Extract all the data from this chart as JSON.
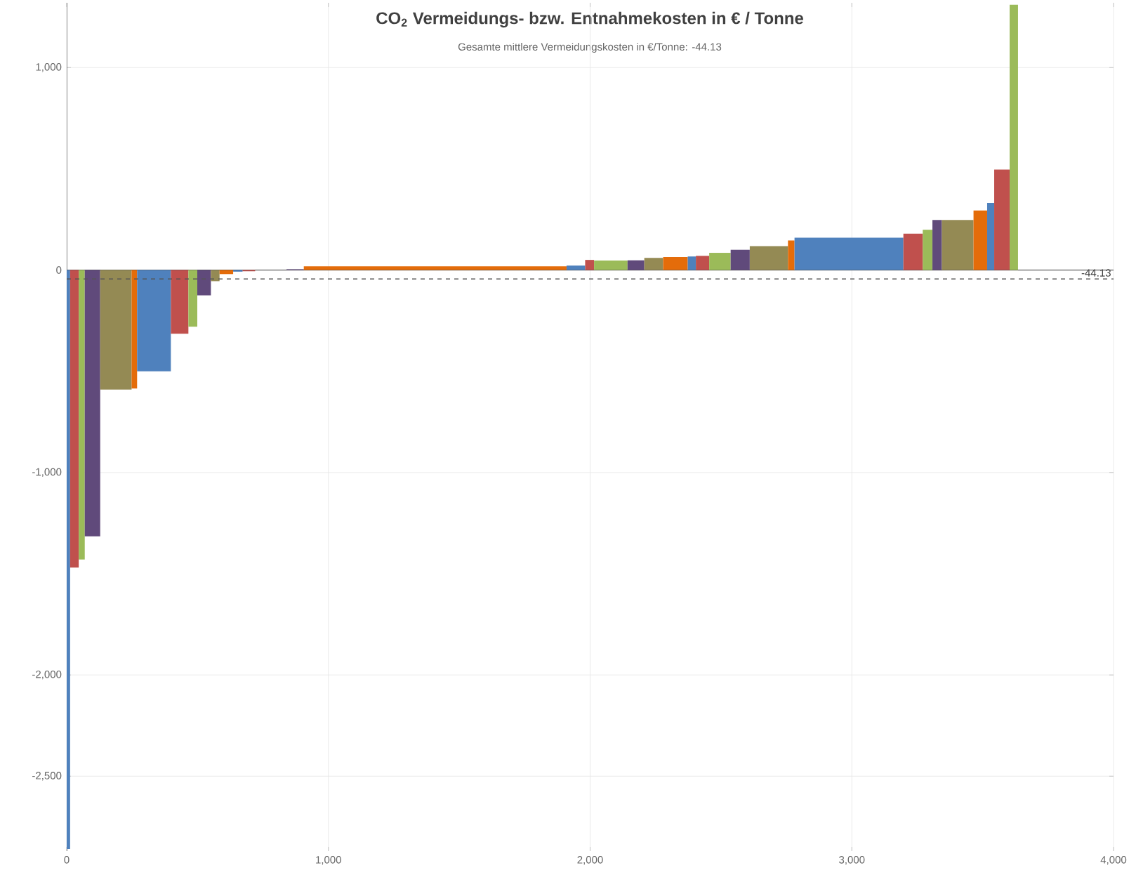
{
  "chart_data": {
    "type": "histogram",
    "title": "CO$_{2}$ Vermeidungs- bzw. Entnahmekosten in € / Tonne",
    "subtitle": "Gesamte mittlere Vermeidungskosten in €/Tonne: -44.13",
    "bins": [
      0,
      13,
      46,
      69,
      128,
      248,
      269,
      398,
      465,
      499,
      551,
      584,
      636,
      672,
      720,
      840,
      906,
      1910,
      1981,
      2015,
      2143,
      2207,
      2279,
      2373,
      2404,
      2455,
      2537,
      2610,
      2756,
      2781,
      3197,
      3271,
      3308,
      3344,
      3465,
      3517,
      3544,
      3603,
      3635
    ],
    "values": [
      -2860,
      -1470,
      -1430,
      -1315,
      -590,
      -585,
      -500,
      -315,
      -280,
      -125,
      -55,
      -20,
      -8,
      -6,
      null,
      4,
      18,
      22,
      50,
      47,
      48,
      60,
      64,
      67,
      70,
      85,
      100,
      118,
      146,
      160,
      180,
      199,
      247,
      247,
      294,
      331,
      496,
      1310
    ],
    "colors": [
      "#4f81bd",
      "#c0504d",
      "#9bbb59",
      "#604a7b",
      "#948a54",
      "#e46c0a",
      "#4f81bd",
      "#c0504d",
      "#9bbb59",
      "#604a7b",
      "#948a54",
      "#e46c0a",
      "#4f81bd",
      "#c0504d",
      null,
      "#604a7b",
      "#e46c0a",
      "#4f81bd",
      "#c0504d",
      "#9bbb59",
      "#604a7b",
      "#948a54",
      "#e46c0a",
      "#4f81bd",
      "#c0504d",
      "#9bbb59",
      "#604a7b",
      "#948a54",
      "#e46c0a",
      "#4f81bd",
      "#c0504d",
      "#9bbb59",
      "#604a7b",
      "#948a54",
      "#e46c0a",
      "#4f81bd",
      "#c0504d",
      "#9bbb59"
    ],
    "xlim": [
      0,
      4000
    ],
    "xticks": [
      0,
      {
        "value": 1000,
        "label": "1,000"
      },
      {
        "value": 2000,
        "label": "2,000"
      },
      {
        "value": 3000,
        "label": "3,000"
      },
      {
        "value": 4000,
        "label": "4,000"
      }
    ],
    "ylim": [
      -2870,
      1320
    ],
    "yticks": [
      {
        "value": -2500,
        "label": "-2,500"
      },
      {
        "value": -2000,
        "label": "-2,000"
      },
      {
        "value": -1000,
        "label": "-1,000"
      },
      0,
      {
        "value": 1000,
        "label": "1,000"
      }
    ],
    "grid": true,
    "ref_lines": [
      {
        "axis": "y",
        "value": -44.13,
        "label": "-44.13",
        "color": "#555555",
        "line_style": "dashed"
      }
    ]
  }
}
